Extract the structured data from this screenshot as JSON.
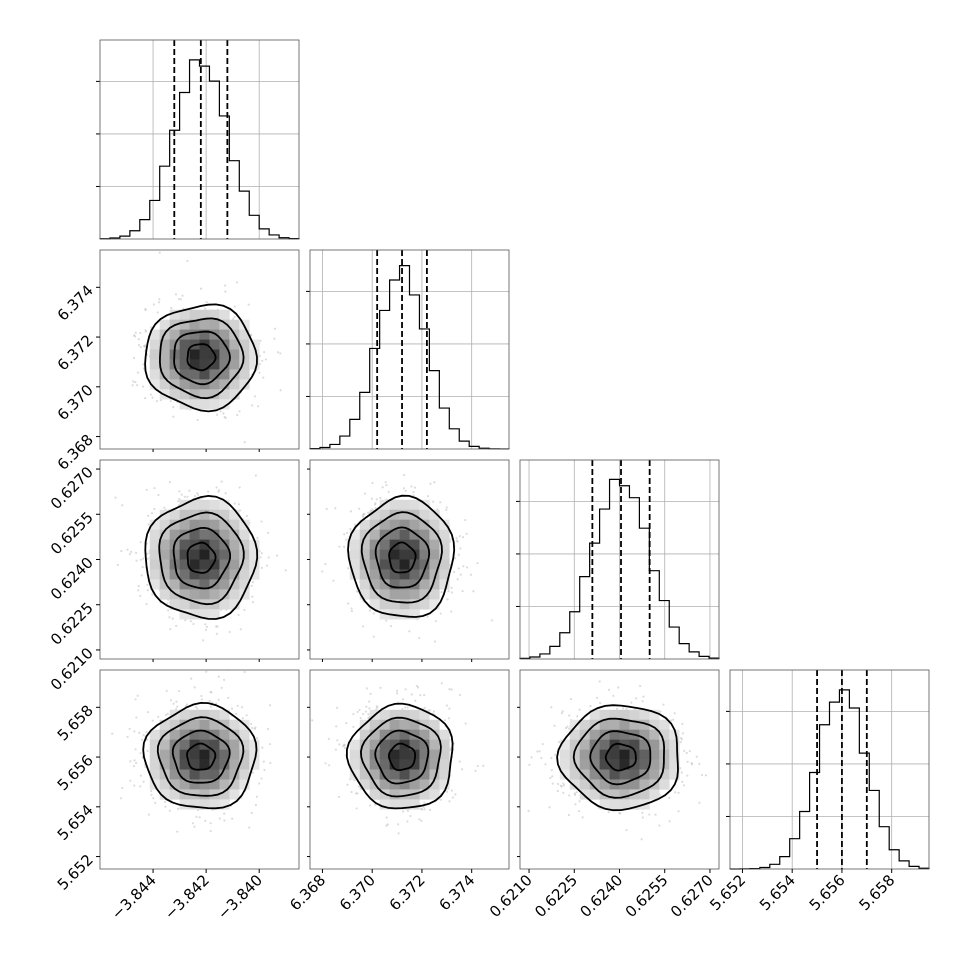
{
  "chart_data": {
    "type": "corner",
    "parameters": [
      {
        "mean": -3.8422,
        "sigma": 0.001,
        "q16": -3.8432,
        "q50": -3.8422,
        "q84": -3.8412,
        "range": [
          -3.846,
          -3.8385
        ],
        "ticks": [
          -3.844,
          -3.842,
          -3.84
        ],
        "tick_labels": [
          "−3.844",
          "−3.842",
          "−3.840"
        ]
      },
      {
        "mean": 6.3712,
        "sigma": 0.001,
        "q16": 6.3702,
        "q50": 6.3712,
        "q84": 6.3722,
        "range": [
          6.3675,
          6.3755
        ],
        "ticks": [
          6.368,
          6.37,
          6.372,
          6.374
        ],
        "tick_labels": [
          "6.368",
          "6.370",
          "6.372",
          "6.374"
        ]
      },
      {
        "mean": 0.62405,
        "sigma": 0.00095,
        "q16": 0.6231,
        "q50": 0.62405,
        "q84": 0.625,
        "range": [
          0.6207,
          0.6273
        ],
        "ticks": [
          0.621,
          0.6225,
          0.624,
          0.6255,
          0.627
        ],
        "tick_labels": [
          "0.6210",
          "0.6225",
          "0.6240",
          "0.6255",
          "0.6270"
        ]
      },
      {
        "mean": 5.656,
        "sigma": 0.001,
        "q16": 5.655,
        "q50": 5.656,
        "q84": 5.657,
        "range": [
          5.6515,
          5.6595
        ],
        "ticks": [
          5.652,
          5.654,
          5.656,
          5.658
        ],
        "tick_labels": [
          "5.652",
          "5.654",
          "5.656",
          "5.658"
        ]
      }
    ],
    "histogram_bins": 20,
    "contour_levels_sigma": [
      0.5,
      1.0,
      1.5,
      2.0
    ],
    "quantiles": [
      0.16,
      0.5,
      0.84
    ],
    "grid": true
  }
}
